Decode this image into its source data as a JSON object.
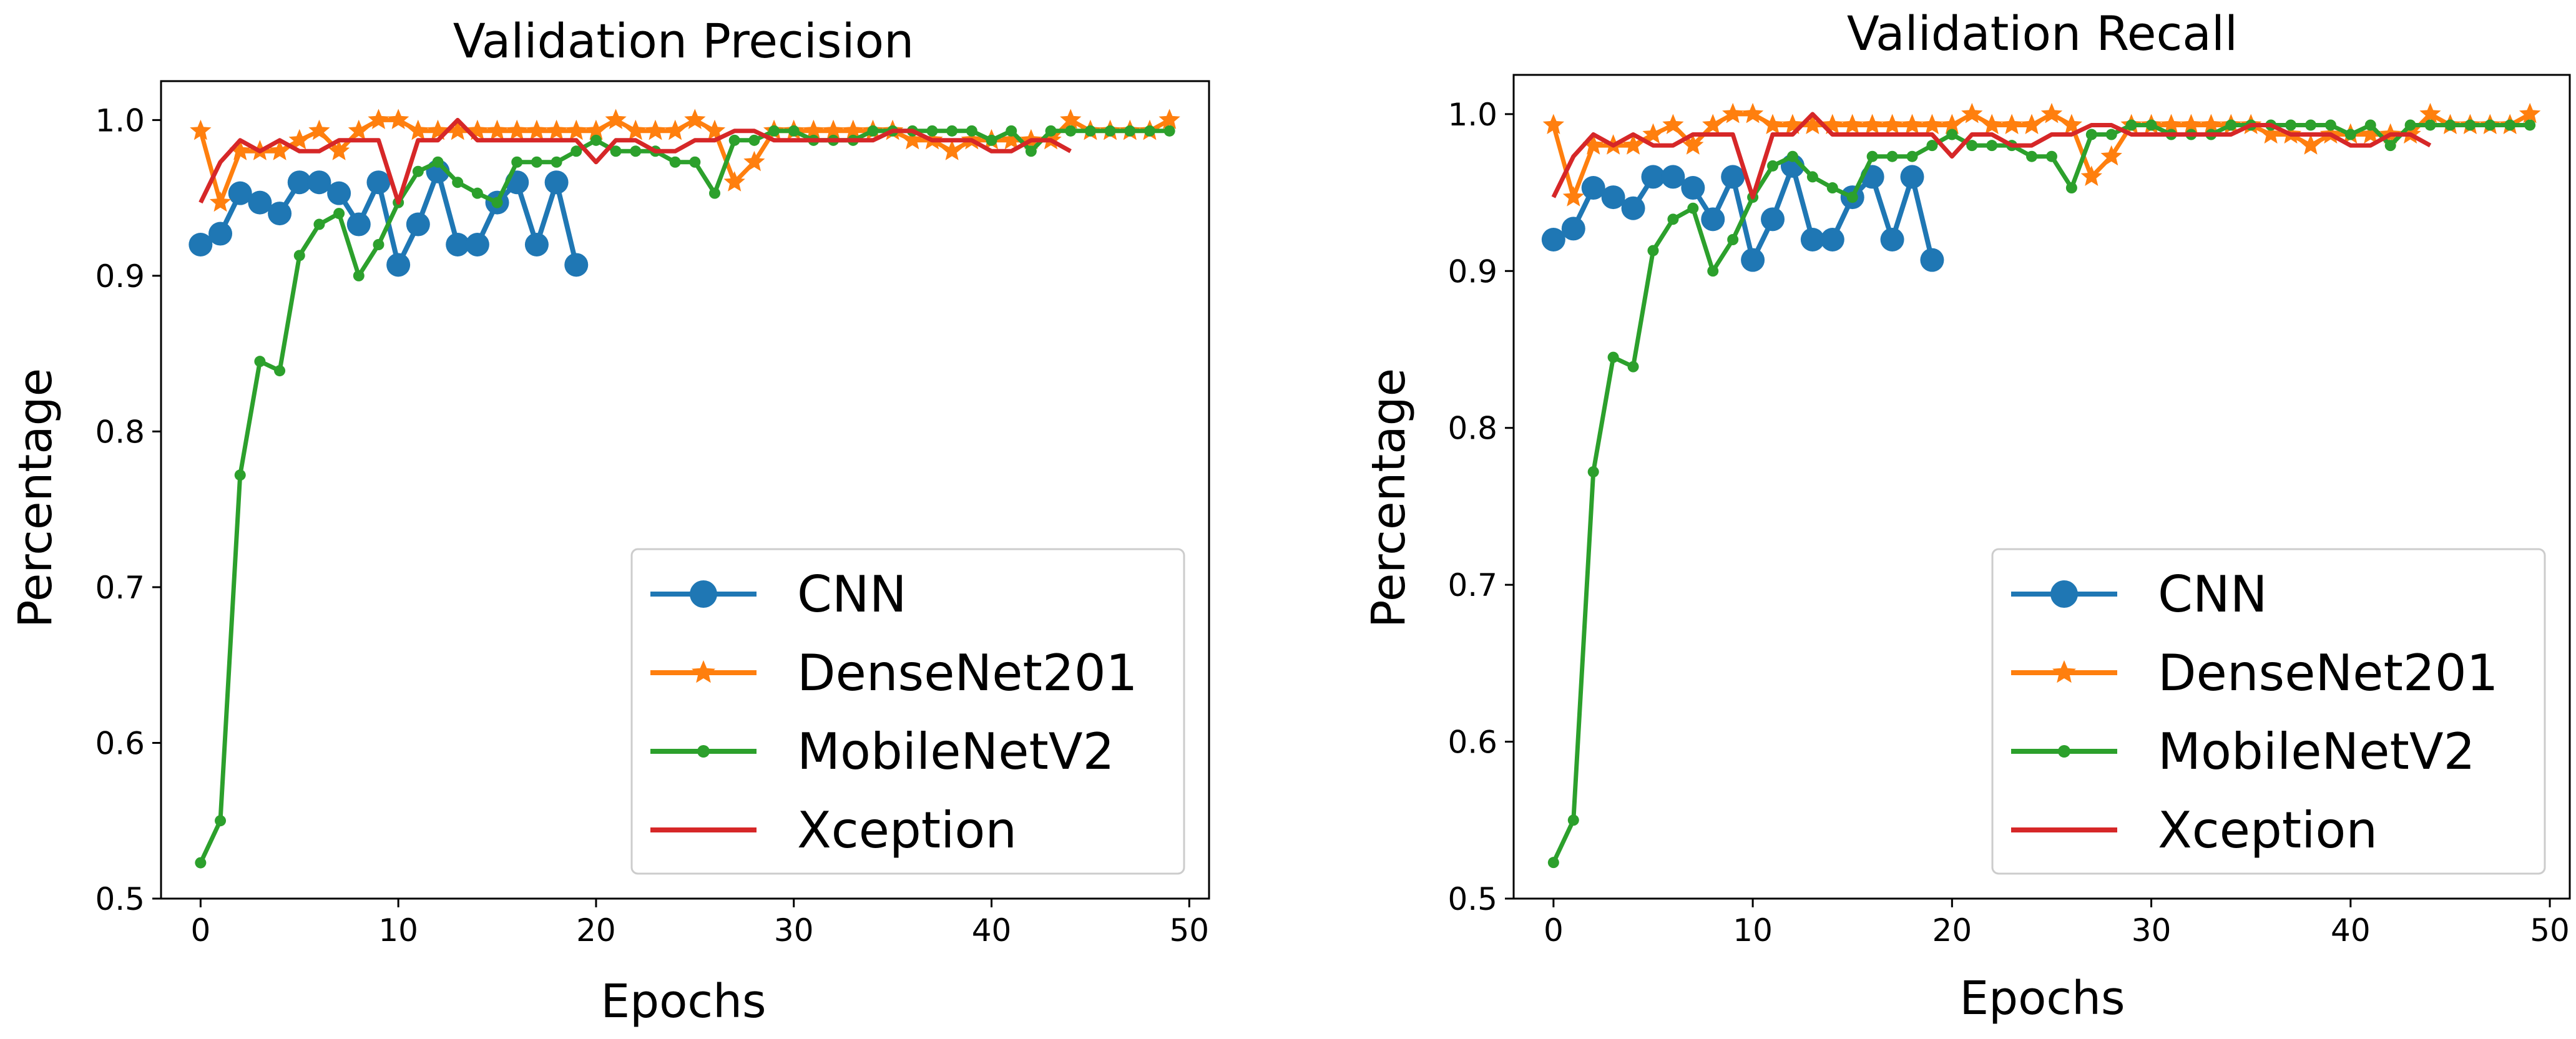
{
  "colors": {
    "CNN": "#1f77b4",
    "DenseNet201": "#ff7f0e",
    "MobileNetV2": "#2ca02c",
    "Xception": "#d62728"
  },
  "chart_data": [
    {
      "type": "line",
      "title": "Validation Precision",
      "xlabel": "Epochs",
      "ylabel": "Percentage",
      "xlim": [
        -2,
        51
      ],
      "ylim": [
        0.5,
        1.025
      ],
      "xticks": [
        0,
        10,
        20,
        30,
        40,
        50
      ],
      "yticks": [
        0.5,
        0.6,
        0.7,
        0.8,
        0.9,
        1.0
      ],
      "legend_position": "lower-right",
      "series": [
        {
          "name": "CNN",
          "marker": "circle",
          "x": [
            0,
            1,
            2,
            3,
            4,
            5,
            6,
            7,
            8,
            9,
            10,
            11,
            12,
            13,
            14,
            15,
            16,
            17,
            18,
            19
          ],
          "values": [
            0.92,
            0.927,
            0.953,
            0.947,
            0.94,
            0.96,
            0.96,
            0.953,
            0.933,
            0.96,
            0.907,
            0.933,
            0.967,
            0.92,
            0.92,
            0.947,
            0.96,
            0.92,
            0.96,
            0.907
          ]
        },
        {
          "name": "DenseNet201",
          "marker": "star",
          "x": [
            0,
            1,
            2,
            3,
            4,
            5,
            6,
            7,
            8,
            9,
            10,
            11,
            12,
            13,
            14,
            15,
            16,
            17,
            18,
            19,
            20,
            21,
            22,
            23,
            24,
            25,
            26,
            27,
            28,
            29,
            30,
            31,
            32,
            33,
            34,
            35,
            36,
            37,
            38,
            39,
            40,
            41,
            42,
            43,
            44,
            45,
            46,
            47,
            48,
            49
          ],
          "values": [
            0.993,
            0.947,
            0.98,
            0.98,
            0.98,
            0.987,
            0.993,
            0.98,
            0.993,
            1.0,
            1.0,
            0.993,
            0.993,
            0.993,
            0.993,
            0.993,
            0.993,
            0.993,
            0.993,
            0.993,
            0.993,
            1.0,
            0.993,
            0.993,
            0.993,
            1.0,
            0.993,
            0.96,
            0.973,
            0.993,
            0.993,
            0.993,
            0.993,
            0.993,
            0.993,
            0.993,
            0.987,
            0.987,
            0.98,
            0.987,
            0.987,
            0.987,
            0.987,
            0.987,
            1.0,
            0.993,
            0.993,
            0.993,
            0.993,
            1.0
          ]
        },
        {
          "name": "MobileNetV2",
          "marker": "dot",
          "x": [
            0,
            1,
            2,
            3,
            4,
            5,
            6,
            7,
            8,
            9,
            10,
            11,
            12,
            13,
            14,
            15,
            16,
            17,
            18,
            19,
            20,
            21,
            22,
            23,
            24,
            25,
            26,
            27,
            28,
            29,
            30,
            31,
            32,
            33,
            34,
            35,
            36,
            37,
            38,
            39,
            40,
            41,
            42,
            43,
            44,
            45,
            46,
            47,
            48,
            49
          ],
          "values": [
            0.523,
            0.55,
            0.772,
            0.845,
            0.839,
            0.913,
            0.933,
            0.94,
            0.9,
            0.92,
            0.947,
            0.967,
            0.973,
            0.96,
            0.953,
            0.947,
            0.973,
            0.973,
            0.973,
            0.98,
            0.987,
            0.98,
            0.98,
            0.98,
            0.973,
            0.973,
            0.953,
            0.987,
            0.987,
            0.993,
            0.993,
            0.987,
            0.987,
            0.987,
            0.993,
            0.993,
            0.993,
            0.993,
            0.993,
            0.993,
            0.987,
            0.993,
            0.98,
            0.993,
            0.993,
            0.993,
            0.993,
            0.993,
            0.993,
            0.993
          ]
        },
        {
          "name": "Xception",
          "marker": "none",
          "x": [
            0,
            1,
            2,
            3,
            4,
            5,
            6,
            7,
            8,
            9,
            10,
            11,
            12,
            13,
            14,
            15,
            16,
            17,
            18,
            19,
            20,
            21,
            22,
            23,
            24,
            25,
            26,
            27,
            28,
            29,
            30,
            31,
            32,
            33,
            34,
            35,
            36,
            37,
            38,
            39,
            40,
            41,
            42,
            43,
            44
          ],
          "values": [
            0.947,
            0.973,
            0.987,
            0.98,
            0.987,
            0.98,
            0.98,
            0.987,
            0.987,
            0.987,
            0.947,
            0.987,
            0.987,
            1.0,
            0.987,
            0.987,
            0.987,
            0.987,
            0.987,
            0.987,
            0.973,
            0.987,
            0.987,
            0.98,
            0.98,
            0.987,
            0.987,
            0.993,
            0.993,
            0.987,
            0.987,
            0.987,
            0.987,
            0.987,
            0.987,
            0.993,
            0.993,
            0.987,
            0.987,
            0.987,
            0.98,
            0.98,
            0.987,
            0.987,
            0.98
          ]
        }
      ]
    },
    {
      "type": "line",
      "title": "Validation Recall",
      "xlabel": "Epochs",
      "ylabel": "Percentage",
      "xlim": [
        -2,
        51
      ],
      "ylim": [
        0.5,
        1.025
      ],
      "xticks": [
        0,
        10,
        20,
        30,
        40,
        50
      ],
      "yticks": [
        0.5,
        0.6,
        0.7,
        0.8,
        0.9,
        1.0
      ],
      "legend_position": "lower-right",
      "series": [
        {
          "name": "CNN",
          "marker": "circle",
          "x": [
            0,
            1,
            2,
            3,
            4,
            5,
            6,
            7,
            8,
            9,
            10,
            11,
            12,
            13,
            14,
            15,
            16,
            17,
            18,
            19
          ],
          "values": [
            0.92,
            0.927,
            0.953,
            0.947,
            0.94,
            0.96,
            0.96,
            0.953,
            0.933,
            0.96,
            0.907,
            0.933,
            0.967,
            0.92,
            0.92,
            0.947,
            0.96,
            0.92,
            0.96,
            0.907
          ]
        },
        {
          "name": "DenseNet201",
          "marker": "star",
          "x": [
            0,
            1,
            2,
            3,
            4,
            5,
            6,
            7,
            8,
            9,
            10,
            11,
            12,
            13,
            14,
            15,
            16,
            17,
            18,
            19,
            20,
            21,
            22,
            23,
            24,
            25,
            26,
            27,
            28,
            29,
            30,
            31,
            32,
            33,
            34,
            35,
            36,
            37,
            38,
            39,
            40,
            41,
            42,
            43,
            44,
            45,
            46,
            47,
            48,
            49
          ],
          "values": [
            0.993,
            0.947,
            0.98,
            0.98,
            0.98,
            0.987,
            0.993,
            0.98,
            0.993,
            1.0,
            1.0,
            0.993,
            0.993,
            0.993,
            0.993,
            0.993,
            0.993,
            0.993,
            0.993,
            0.993,
            0.993,
            1.0,
            0.993,
            0.993,
            0.993,
            1.0,
            0.993,
            0.96,
            0.973,
            0.993,
            0.993,
            0.993,
            0.993,
            0.993,
            0.993,
            0.993,
            0.987,
            0.987,
            0.98,
            0.987,
            0.987,
            0.987,
            0.987,
            0.987,
            1.0,
            0.993,
            0.993,
            0.993,
            0.993,
            1.0
          ]
        },
        {
          "name": "MobileNetV2",
          "marker": "dot",
          "x": [
            0,
            1,
            2,
            3,
            4,
            5,
            6,
            7,
            8,
            9,
            10,
            11,
            12,
            13,
            14,
            15,
            16,
            17,
            18,
            19,
            20,
            21,
            22,
            23,
            24,
            25,
            26,
            27,
            28,
            29,
            30,
            31,
            32,
            33,
            34,
            35,
            36,
            37,
            38,
            39,
            40,
            41,
            42,
            43,
            44,
            45,
            46,
            47,
            48,
            49
          ],
          "values": [
            0.523,
            0.55,
            0.772,
            0.845,
            0.839,
            0.913,
            0.933,
            0.94,
            0.9,
            0.92,
            0.947,
            0.967,
            0.973,
            0.96,
            0.953,
            0.947,
            0.973,
            0.973,
            0.973,
            0.98,
            0.987,
            0.98,
            0.98,
            0.98,
            0.973,
            0.973,
            0.953,
            0.987,
            0.987,
            0.993,
            0.993,
            0.987,
            0.987,
            0.987,
            0.993,
            0.993,
            0.993,
            0.993,
            0.993,
            0.993,
            0.987,
            0.993,
            0.98,
            0.993,
            0.993,
            0.993,
            0.993,
            0.993,
            0.993,
            0.993
          ]
        },
        {
          "name": "Xception",
          "marker": "none",
          "x": [
            0,
            1,
            2,
            3,
            4,
            5,
            6,
            7,
            8,
            9,
            10,
            11,
            12,
            13,
            14,
            15,
            16,
            17,
            18,
            19,
            20,
            21,
            22,
            23,
            24,
            25,
            26,
            27,
            28,
            29,
            30,
            31,
            32,
            33,
            34,
            35,
            36,
            37,
            38,
            39,
            40,
            41,
            42,
            43,
            44
          ],
          "values": [
            0.947,
            0.973,
            0.987,
            0.98,
            0.987,
            0.98,
            0.98,
            0.987,
            0.987,
            0.987,
            0.947,
            0.987,
            0.987,
            1.0,
            0.987,
            0.987,
            0.987,
            0.987,
            0.987,
            0.987,
            0.973,
            0.987,
            0.987,
            0.98,
            0.98,
            0.987,
            0.987,
            0.993,
            0.993,
            0.987,
            0.987,
            0.987,
            0.987,
            0.987,
            0.987,
            0.993,
            0.993,
            0.987,
            0.987,
            0.987,
            0.98,
            0.98,
            0.987,
            0.987,
            0.98
          ]
        }
      ]
    }
  ]
}
